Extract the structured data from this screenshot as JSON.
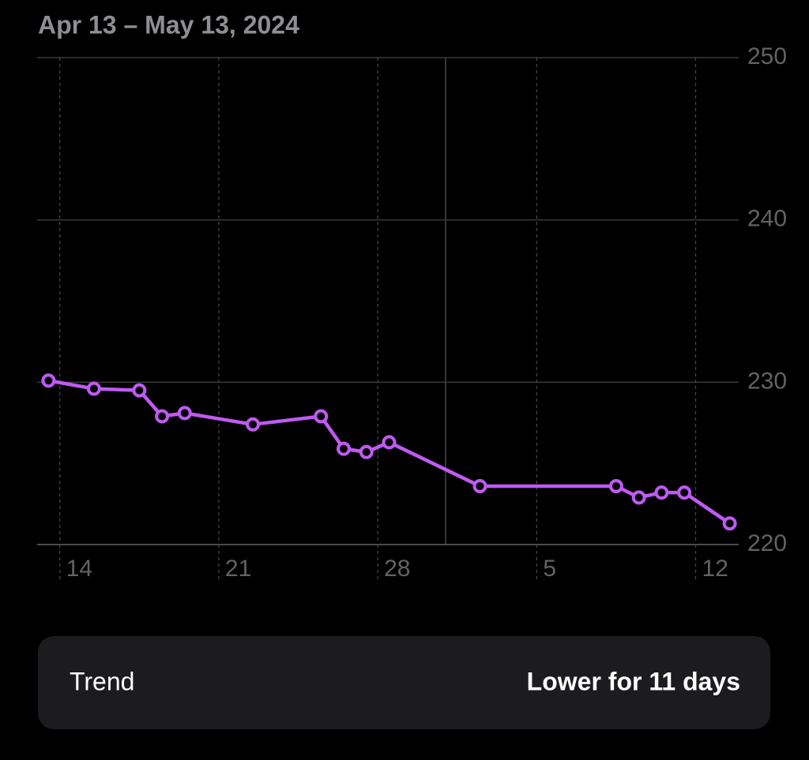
{
  "chart_data": {
    "type": "line",
    "title": "Apr 13 – May 13, 2024",
    "x": [
      "2024-04-13",
      "2024-04-15",
      "2024-04-17",
      "2024-04-18",
      "2024-04-19",
      "2024-04-22",
      "2024-04-25",
      "2024-04-26",
      "2024-04-27",
      "2024-04-28",
      "2024-05-02",
      "2024-05-08",
      "2024-05-09",
      "2024-05-10",
      "2024-05-11",
      "2024-05-13"
    ],
    "series": [
      {
        "color": "#bf5af2",
        "values": [
          230.1,
          229.6,
          229.5,
          227.9,
          228.1,
          227.4,
          227.9,
          225.9,
          225.7,
          226.3,
          223.6,
          223.6,
          222.9,
          223.2,
          223.2,
          221.3
        ]
      }
    ],
    "xlim": [
      "2024-04-13",
      "2024-05-14"
    ],
    "xticks": [
      {
        "value": "2024-04-14",
        "label": "14"
      },
      {
        "value": "2024-04-21",
        "label": "21"
      },
      {
        "value": "2024-04-28",
        "label": "28"
      },
      {
        "value": "2024-05-05",
        "label": "5"
      },
      {
        "value": "2024-05-12",
        "label": "12"
      }
    ],
    "ylim": [
      220,
      250
    ],
    "yticks": [
      220,
      230,
      240,
      250
    ],
    "grid": true
  },
  "trend": {
    "label": "Trend",
    "value": "Lower for 11 days"
  }
}
